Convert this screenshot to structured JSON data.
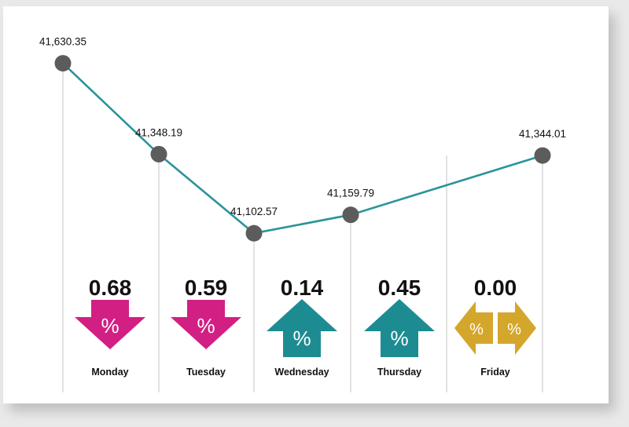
{
  "chart_data": {
    "type": "line",
    "categories": [
      "Monday",
      "Tuesday",
      "Wednesday",
      "Thursday",
      "Friday"
    ],
    "values": [
      41630.35,
      41348.19,
      41102.57,
      41159.79,
      41344.01
    ],
    "value_labels": [
      "41,630.35",
      "41,348.19",
      "41,102.57",
      "41,159.79",
      "41,344.01"
    ],
    "changes": [
      {
        "day": "Monday",
        "percent": "0.68",
        "direction": "down",
        "symbol": "%"
      },
      {
        "day": "Tuesday",
        "percent": "0.59",
        "direction": "down",
        "symbol": "%"
      },
      {
        "day": "Wednesday",
        "percent": "0.14",
        "direction": "up",
        "symbol": "%"
      },
      {
        "day": "Thursday",
        "percent": "0.45",
        "direction": "up",
        "symbol": "%"
      },
      {
        "day": "Friday",
        "percent": "0.00",
        "direction": "flat",
        "symbol": "%"
      }
    ],
    "ylim": [
      40540,
      41700
    ],
    "line_color": "#2a949a",
    "point_color": "#5c5c5c",
    "colors": {
      "down": "#d21f84",
      "up": "#1d8c92",
      "flat": "#d4a62c"
    },
    "grid": false,
    "legend": "none"
  }
}
